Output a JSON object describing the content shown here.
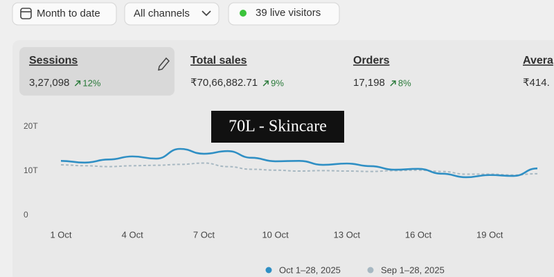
{
  "top_bar": {
    "date_range": "Month to date",
    "channel_filter": "All channels",
    "live_visitors": "39 live visitors"
  },
  "metrics": [
    {
      "label": "Sessions",
      "value": "3,27,098",
      "change": "12%"
    },
    {
      "label": "Total sales",
      "value": "₹70,66,882.71",
      "change": "9%"
    },
    {
      "label": "Orders",
      "value": "17,198",
      "change": "8%"
    },
    {
      "label": "Avera",
      "value": "₹414."
    }
  ],
  "chart": {
    "type": "line",
    "annotation": "70L - Skincare",
    "categories": [
      "1 Oct",
      null,
      null,
      "4 Oct",
      null,
      null,
      "7 Oct",
      null,
      null,
      "10 Oct",
      null,
      null,
      "13 Oct",
      null,
      null,
      "16 Oct",
      null,
      null,
      "19 Oct",
      null,
      null
    ],
    "series": [
      {
        "name": "Oct 1–28, 2025",
        "color": "#2f8fc4",
        "dashed": false,
        "values": [
          12300,
          11900,
          12600,
          13300,
          12800,
          15000,
          13900,
          14500,
          13000,
          12200,
          12300,
          11400,
          11700,
          11100,
          10300,
          10500,
          9400,
          8600,
          9100,
          8900,
          10600
        ]
      },
      {
        "name": "Sep 1–28, 2025",
        "color": "#a7b8c2",
        "dashed": true,
        "values": [
          11400,
          11200,
          11000,
          11200,
          11300,
          11500,
          11800,
          11000,
          10400,
          10200,
          10000,
          10100,
          10000,
          9900,
          10100,
          10200,
          9900,
          9300,
          9300,
          9100,
          9400
        ]
      }
    ],
    "ylim": [
      0,
      20000
    ],
    "yticks": [
      0,
      {
        "value": 10000,
        "label": "10T"
      },
      {
        "value": 20000,
        "label": "20T"
      }
    ]
  }
}
